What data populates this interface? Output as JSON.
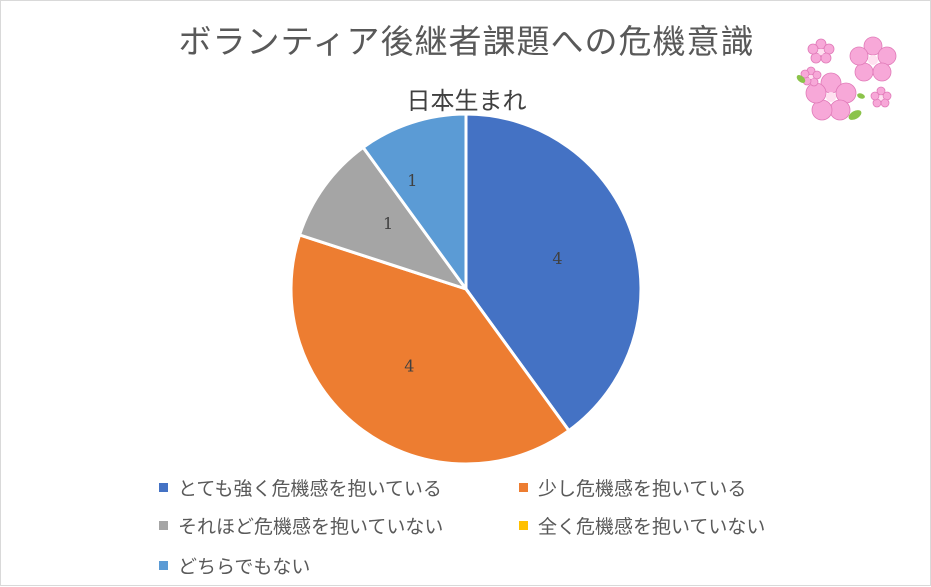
{
  "chart_data": {
    "type": "pie",
    "title": "ボランティア後継者課題への危機意識",
    "subtitle": "日本生まれ",
    "categories": [
      "とても強く危機感を抱いている",
      "少し危機感を抱いている",
      "それほど危機感を抱いていない",
      "全く危機感を抱いていない",
      "どちらでもない"
    ],
    "values": [
      4,
      4,
      1,
      0,
      1
    ],
    "colors": [
      "#4472C4",
      "#ED7D31",
      "#A5A5A5",
      "#FFC000",
      "#5B9BD5"
    ],
    "legend_position": "bottom",
    "data_labels": true
  },
  "decoration": {
    "icon": "cherry-blossom-icon"
  }
}
